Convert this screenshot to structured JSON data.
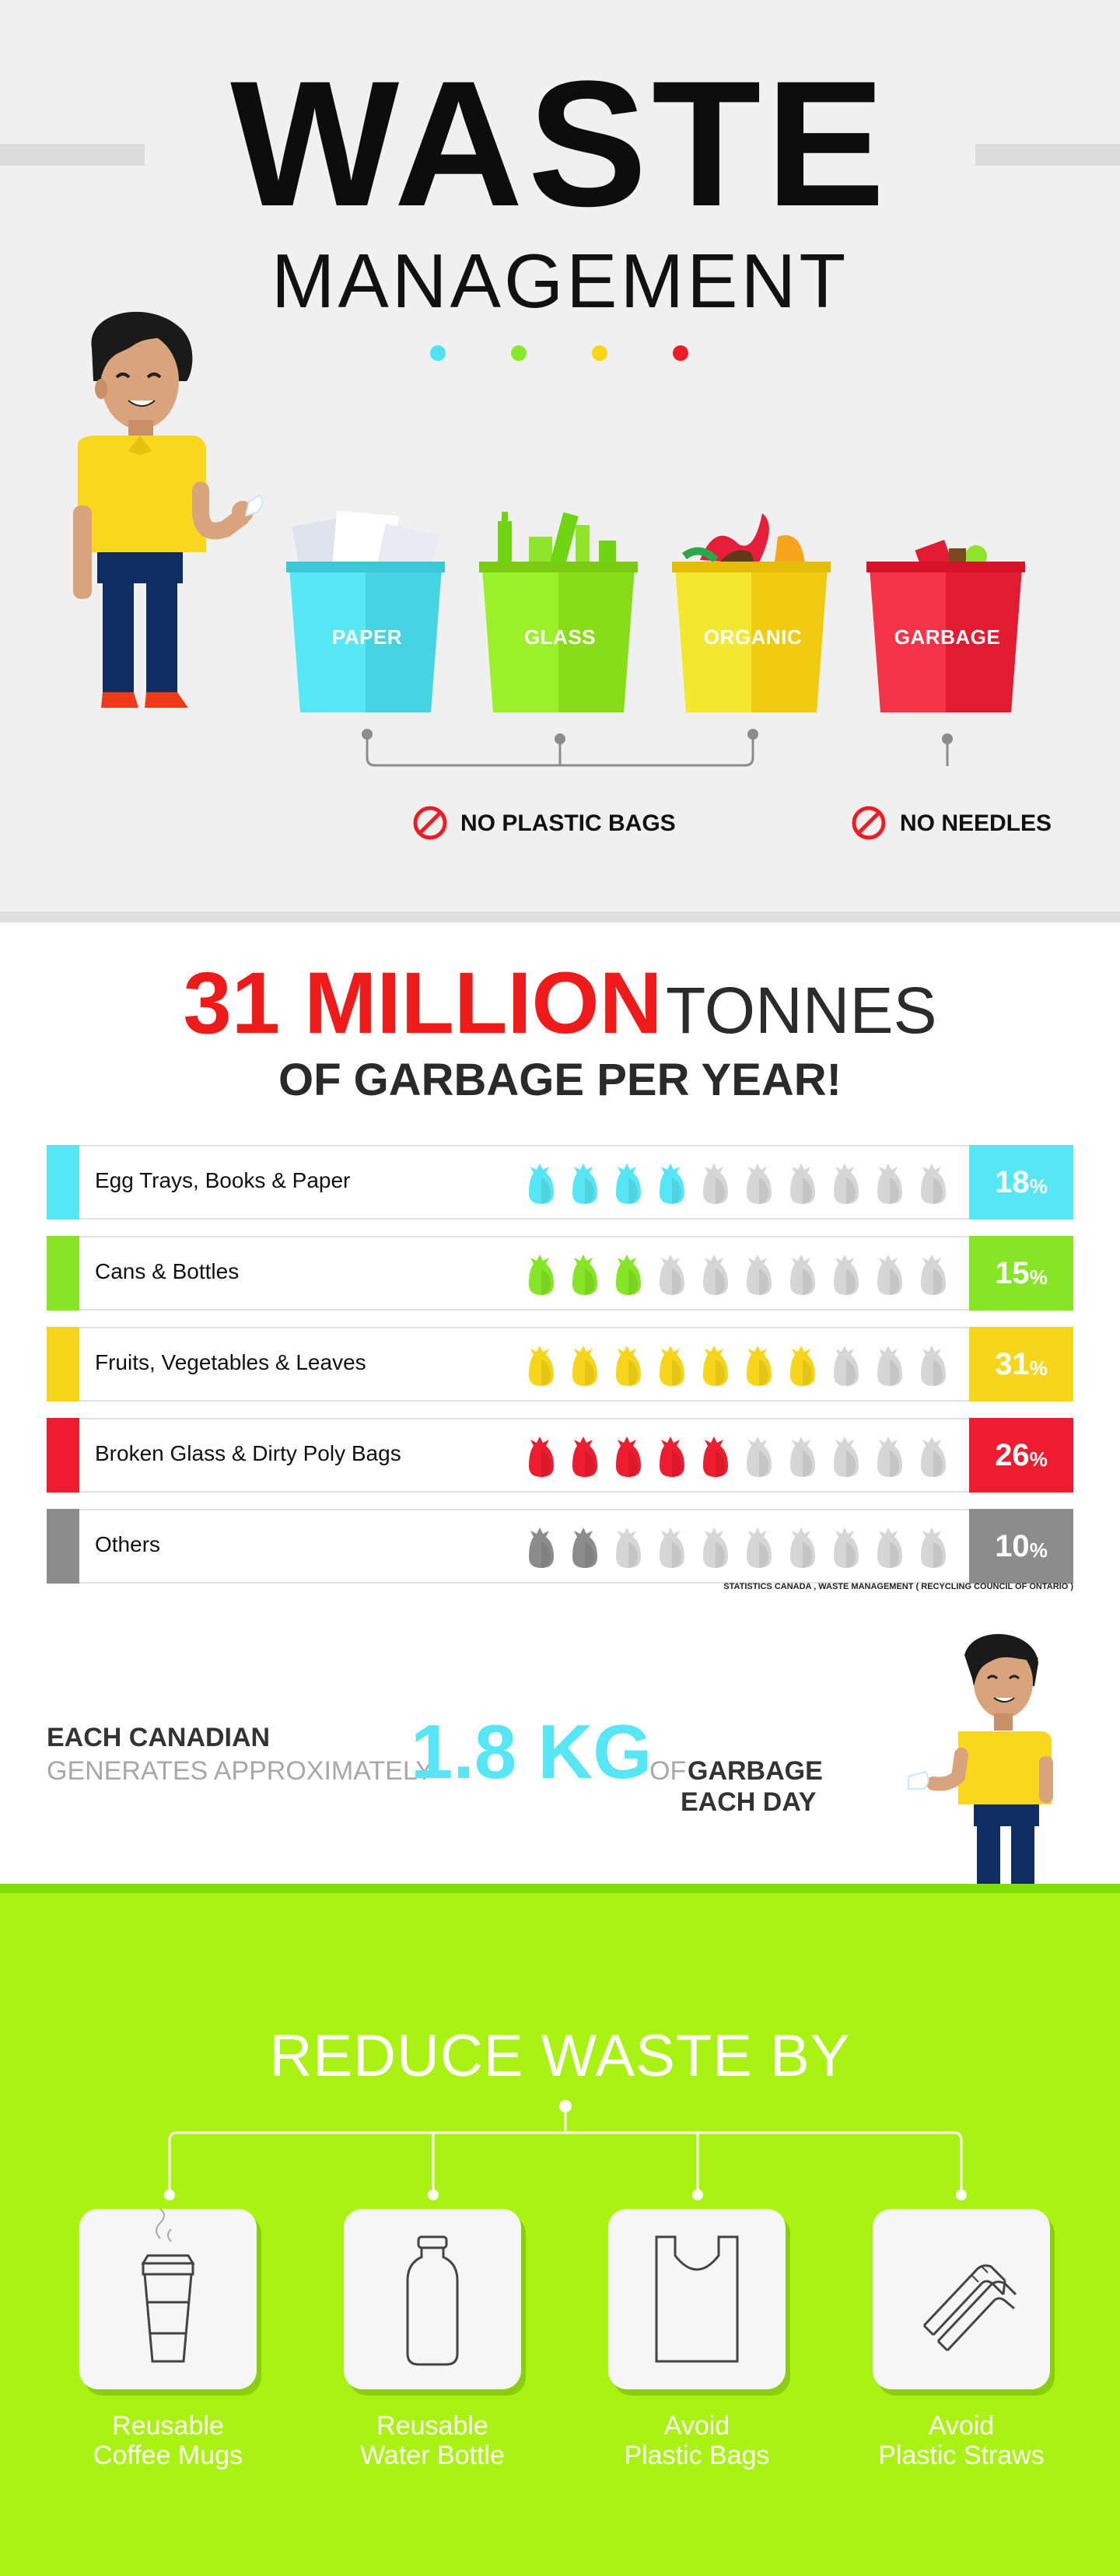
{
  "header": {
    "title": "WASTE",
    "subtitle": "MANAGEMENT",
    "dots": [
      "#4fe3f4",
      "#87e92a",
      "#fbd615",
      "#ee1c24"
    ]
  },
  "bins": [
    {
      "label": "PAPER",
      "color": "#57e8f6",
      "shade": "#46d3e2"
    },
    {
      "label": "GLASS",
      "color": "#9af12a",
      "shade": "#86dd18"
    },
    {
      "label": "ORGANIC",
      "color": "#f4e82e",
      "shade": "#f1cb10"
    },
    {
      "label": "GARBAGE",
      "color": "#f5344a",
      "shade": "#e11b30"
    }
  ],
  "rules": {
    "no_plastic_bags": "NO PLASTIC BAGS",
    "no_needles": "NO NEEDLES"
  },
  "stat": {
    "number": "31 MILLION",
    "unit": "TONNES",
    "line2": "OF GARBAGE  PER YEAR!"
  },
  "categories": [
    {
      "label": "Egg Trays, Books & Paper",
      "percent": "18",
      "bags_filled": 4,
      "color": "#57e6f5"
    },
    {
      "label": "Cans & Bottles",
      "percent": "15",
      "bags_filled": 3,
      "color": "#86e524"
    },
    {
      "label": "Fruits, Vegetables & Leaves",
      "percent": "31",
      "bags_filled": 7,
      "color": "#f7d51a"
    },
    {
      "label": "Broken Glass & Dirty Poly Bags",
      "percent": "26",
      "bags_filled": 5,
      "color": "#ee1c2f"
    },
    {
      "label": "Others",
      "percent": "10",
      "bags_filled": 2,
      "color": "#8c8c8c"
    }
  ],
  "percent_sign": "%",
  "bag_total": 10,
  "source": "STATISTICS CANADA , WASTE MANAGEMENT ( RECYCLING COUNCIL OF ONTARIO )",
  "per_capita": {
    "line_a": "EACH CANADIAN",
    "line_b": "GENERATES APPROXIMATELY",
    "value": "1.8 KG",
    "of": "OF",
    "line_c": "GARBAGE",
    "line_d": "EACH DAY"
  },
  "reduce": {
    "title": "REDUCE WASTE BY",
    "tips": [
      {
        "line1": "Reusable",
        "line2": "Coffee Mugs",
        "icon": "coffee-cup-icon"
      },
      {
        "line1": "Reusable",
        "line2": "Water Bottle",
        "icon": "water-bottle-icon"
      },
      {
        "line1": "Avoid",
        "line2": "Plastic Bags",
        "icon": "plastic-bag-icon"
      },
      {
        "line1": "Avoid",
        "line2": "Plastic Straws",
        "icon": "straws-icon"
      }
    ]
  }
}
